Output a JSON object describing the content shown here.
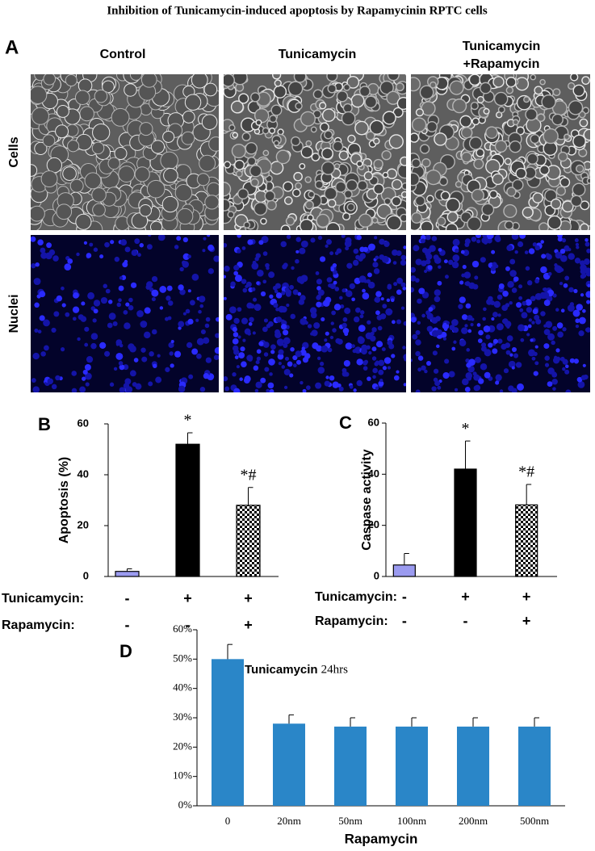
{
  "title": "Inhibition of Tunicamycin-induced apoptosis by Rapamycinin RPTC cells",
  "panel_a": {
    "label": "A",
    "columns": [
      [
        "Control"
      ],
      [
        "Tunicamycin"
      ],
      [
        "Tunicamycin",
        "+Rapamycin"
      ]
    ],
    "rows": [
      "Cells",
      "Nuclei"
    ]
  },
  "chart_data": [
    {
      "type": "bar",
      "panel": "B",
      "ylabel": "Apoptosis (%)",
      "categories": [
        null,
        null,
        null
      ],
      "values": [
        2,
        52,
        28
      ],
      "errors": [
        1,
        4.5,
        7
      ],
      "colors": [
        "#9b9bf0",
        "#000000",
        "#000000"
      ],
      "patterns": [
        null,
        null,
        "checkerboard"
      ],
      "annotations": [
        null,
        "*",
        "*#"
      ],
      "ylim": [
        0,
        60
      ],
      "yticks": [
        0,
        20,
        40,
        60
      ],
      "conditions": [
        {
          "name": "Tunicamycin:",
          "values": [
            "-",
            "+",
            "+"
          ]
        },
        {
          "name": "Rapamycin:",
          "values": [
            "-",
            "-",
            "+"
          ]
        }
      ]
    },
    {
      "type": "bar",
      "panel": "C",
      "ylabel": "Caspase activity",
      "categories": [
        null,
        null,
        null
      ],
      "values": [
        4.5,
        42,
        28
      ],
      "errors": [
        4.5,
        11,
        8
      ],
      "colors": [
        "#9b9bf0",
        "#000000",
        "#000000"
      ],
      "patterns": [
        null,
        null,
        "checkerboard"
      ],
      "annotations": [
        null,
        "*",
        "*#"
      ],
      "ylim": [
        0,
        60
      ],
      "yticks": [
        0,
        20,
        40,
        60
      ],
      "conditions": [
        {
          "name": "Tunicamycin:",
          "values": [
            "-",
            "+",
            "+"
          ]
        },
        {
          "name": "Rapamycin:",
          "values": [
            "-",
            "-",
            "+"
          ]
        }
      ]
    },
    {
      "type": "bar",
      "panel": "D",
      "xlabel": "Rapamycin",
      "annotation": {
        "text": "Tunicamycin",
        "detail": "24hrs"
      },
      "categories": [
        "0",
        "20nm",
        "50nm",
        "100nm",
        "200nm",
        "500nm"
      ],
      "values": [
        50,
        28,
        27,
        27,
        27,
        27
      ],
      "errors": [
        5,
        3,
        3,
        3,
        3,
        3
      ],
      "color": "#2a86c8",
      "ylim": [
        0,
        60
      ],
      "yticks": [
        {
          "value": 0,
          "label": "0%"
        },
        {
          "value": 10,
          "label": "10%"
        },
        {
          "value": 20,
          "label": "20%"
        },
        {
          "value": 30,
          "label": "30%"
        },
        {
          "value": 40,
          "label": "40%"
        },
        {
          "value": 50,
          "label": "50%"
        },
        {
          "value": 60,
          "label": "60%"
        }
      ]
    }
  ]
}
